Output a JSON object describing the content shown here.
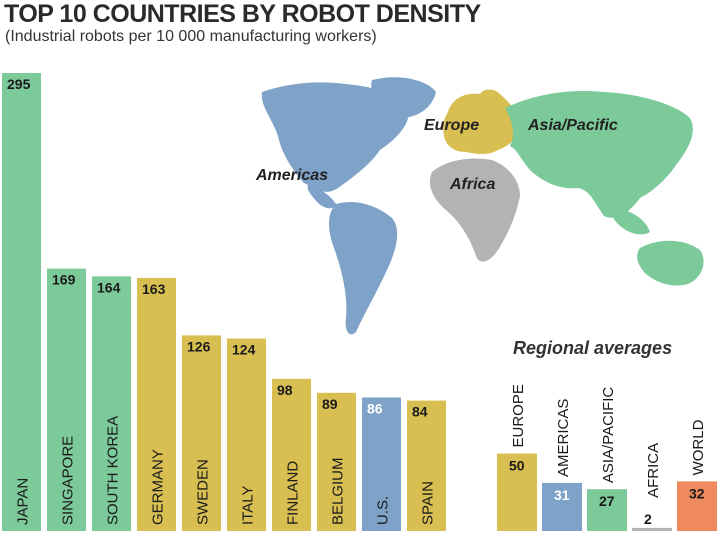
{
  "title": "TOP 10 COUNTRIES BY ROBOT DENSITY",
  "subtitle": "(Industrial robots per 10 000 manufacturing workers)",
  "colors": {
    "europe": "#d9bf52",
    "americas": "#7fa3c8",
    "asia_pacific": "#7cc99a",
    "africa": "#b3b3b3",
    "world": "#ef8a5f"
  },
  "map": {
    "labels": {
      "europe": "Europe",
      "asia_pacific": "Asia/Pacific",
      "americas": "Americas",
      "africa": "Africa"
    }
  },
  "chart_data": [
    {
      "type": "bar",
      "categories": [
        "JAPAN",
        "SINGAPORE",
        "SOUTH KOREA",
        "GERMANY",
        "SWEDEN",
        "ITALY",
        "FINLAND",
        "BELGIUM",
        "U.S.",
        "SPAIN"
      ],
      "values": [
        295,
        169,
        164,
        163,
        126,
        124,
        98,
        89,
        86,
        84
      ],
      "regions": [
        "asia_pacific",
        "asia_pacific",
        "asia_pacific",
        "europe",
        "europe",
        "europe",
        "europe",
        "europe",
        "americas",
        "europe"
      ],
      "ylim": [
        0,
        295
      ]
    },
    {
      "type": "bar",
      "title": "Regional averages",
      "categories": [
        "EUROPE",
        "AMERICAS",
        "ASIA/PACIFIC",
        "AFRICA",
        "WORLD"
      ],
      "values": [
        50,
        31,
        27,
        2,
        32
      ],
      "regions": [
        "europe",
        "americas",
        "asia_pacific",
        "africa",
        "world"
      ]
    }
  ]
}
